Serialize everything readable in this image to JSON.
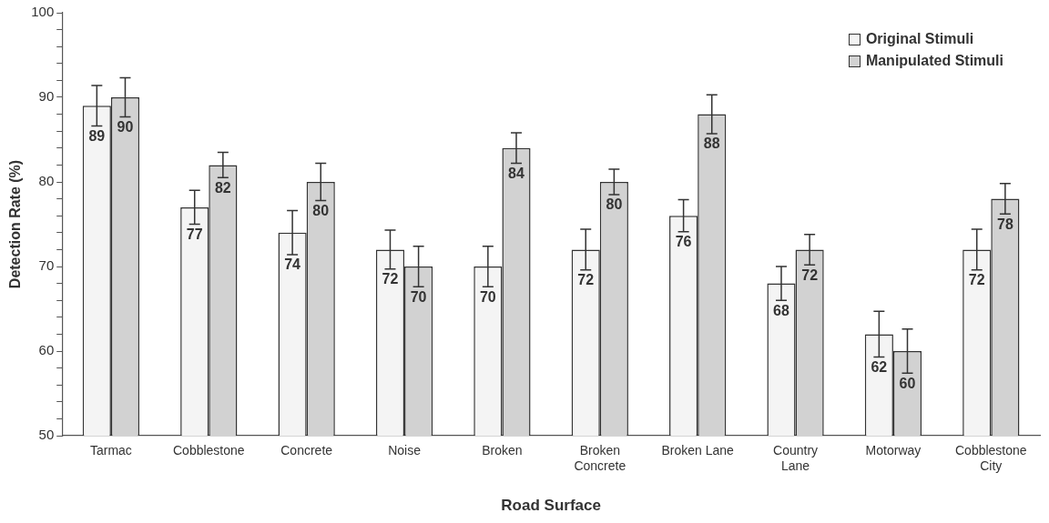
{
  "chart_data": {
    "type": "bar",
    "xlabel": "Road Surface",
    "ylabel": "Detection Rate (%)",
    "categories": [
      "Tarmac",
      "Cobblestone",
      "Concrete",
      "Noise",
      "Broken",
      "Broken Concrete",
      "Broken Lane",
      "Country Lane",
      "Motorway",
      "Cobblestone City"
    ],
    "series": [
      {
        "name": "Original Stimuli",
        "color": "#f4f4f4",
        "values": [
          89,
          77,
          74,
          72,
          70,
          72,
          76,
          68,
          62,
          72
        ],
        "errors": [
          2.4,
          2.0,
          2.6,
          2.3,
          2.4,
          2.4,
          1.9,
          2.0,
          2.7,
          2.4
        ]
      },
      {
        "name": "Manipulated Stimuli",
        "color": "#d2d2d2",
        "values": [
          90,
          82,
          80,
          70,
          84,
          80,
          88,
          72,
          60,
          78
        ],
        "errors": [
          2.3,
          1.5,
          2.2,
          2.4,
          1.8,
          1.5,
          2.3,
          1.8,
          2.6,
          1.8
        ]
      }
    ],
    "ylim": [
      50,
      100
    ],
    "yticks": [
      50,
      {
        "value": 52,
        "label": null
      },
      {
        "value": 54,
        "label": null
      },
      {
        "value": 56,
        "label": null
      },
      {
        "value": 58,
        "label": null
      },
      60,
      {
        "value": 62,
        "label": null
      },
      {
        "value": 64,
        "label": null
      },
      {
        "value": 66,
        "label": null
      },
      {
        "value": 68,
        "label": null
      },
      70,
      {
        "value": 72,
        "label": null
      },
      {
        "value": 74,
        "label": null
      },
      {
        "value": 76,
        "label": null
      },
      {
        "value": 78,
        "label": null
      },
      80,
      {
        "value": 82,
        "label": null
      },
      {
        "value": 84,
        "label": null
      },
      {
        "value": 86,
        "label": null
      },
      {
        "value": 88,
        "label": null
      },
      90,
      {
        "value": 92,
        "label": null
      },
      {
        "value": 94,
        "label": null
      },
      {
        "value": 96,
        "label": null
      },
      {
        "value": 98,
        "label": null
      },
      100
    ],
    "grid": false,
    "legend": "top right",
    "data_labels": true
  }
}
